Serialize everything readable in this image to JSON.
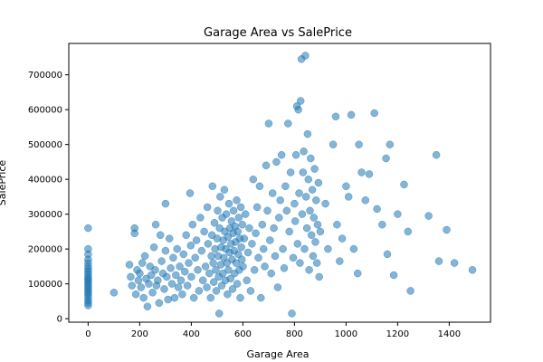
{
  "chart_data": {
    "type": "scatter",
    "title": "Garage Area vs SalePrice",
    "xlabel": "Garage Area",
    "ylabel": "SalePrice",
    "xlim": [
      -75,
      1560
    ],
    "ylim": [
      -10000,
      790000
    ],
    "xticks": [
      0,
      200,
      400,
      600,
      800,
      1000,
      1200,
      1400
    ],
    "yticks": [
      0,
      100000,
      200000,
      300000,
      400000,
      500000,
      600000,
      700000
    ],
    "grid": false,
    "marker_color": "#1f77b4",
    "marker_alpha": 0.55,
    "points": [
      [
        0,
        260000
      ],
      [
        0,
        200000
      ],
      [
        0,
        185000
      ],
      [
        0,
        170000
      ],
      [
        0,
        160000
      ],
      [
        0,
        150000
      ],
      [
        0,
        142000
      ],
      [
        0,
        135000
      ],
      [
        0,
        128000
      ],
      [
        0,
        120000
      ],
      [
        0,
        115000
      ],
      [
        0,
        110000
      ],
      [
        0,
        104000
      ],
      [
        0,
        98000
      ],
      [
        0,
        92000
      ],
      [
        0,
        86000
      ],
      [
        0,
        80000
      ],
      [
        0,
        74000
      ],
      [
        0,
        68000
      ],
      [
        0,
        60000
      ],
      [
        0,
        52000
      ],
      [
        0,
        45000
      ],
      [
        0,
        38000
      ],
      [
        100,
        75000
      ],
      [
        160,
        155000
      ],
      [
        165,
        120000
      ],
      [
        170,
        95000
      ],
      [
        180,
        260000
      ],
      [
        180,
        245000
      ],
      [
        185,
        70000
      ],
      [
        190,
        140000
      ],
      [
        195,
        110000
      ],
      [
        200,
        130000
      ],
      [
        205,
        90000
      ],
      [
        210,
        160000
      ],
      [
        215,
        60000
      ],
      [
        220,
        180000
      ],
      [
        225,
        115000
      ],
      [
        230,
        35000
      ],
      [
        235,
        100000
      ],
      [
        240,
        150000
      ],
      [
        245,
        125000
      ],
      [
        250,
        75000
      ],
      [
        255,
        205000
      ],
      [
        260,
        140000
      ],
      [
        262,
        270000
      ],
      [
        265,
        95000
      ],
      [
        270,
        110000
      ],
      [
        275,
        45000
      ],
      [
        280,
        240000
      ],
      [
        285,
        165000
      ],
      [
        290,
        130000
      ],
      [
        295,
        85000
      ],
      [
        300,
        330000
      ],
      [
        300,
        195000
      ],
      [
        305,
        120000
      ],
      [
        310,
        55000
      ],
      [
        315,
        230000
      ],
      [
        320,
        145000
      ],
      [
        325,
        100000
      ],
      [
        330,
        175000
      ],
      [
        335,
        60000
      ],
      [
        340,
        125000
      ],
      [
        345,
        200000
      ],
      [
        350,
        90000
      ],
      [
        355,
        150000
      ],
      [
        360,
        110000
      ],
      [
        365,
        70000
      ],
      [
        370,
        185000
      ],
      [
        375,
        135000
      ],
      [
        380,
        240000
      ],
      [
        385,
        95000
      ],
      [
        390,
        160000
      ],
      [
        395,
        360000
      ],
      [
        398,
        210000
      ],
      [
        400,
        120000
      ],
      [
        405,
        270000
      ],
      [
        410,
        60000
      ],
      [
        415,
        175000
      ],
      [
        420,
        225000
      ],
      [
        425,
        140000
      ],
      [
        430,
        80000
      ],
      [
        435,
        290000
      ],
      [
        440,
        195000
      ],
      [
        445,
        110000
      ],
      [
        450,
        250000
      ],
      [
        455,
        150000
      ],
      [
        460,
        90000
      ],
      [
        462,
        320000
      ],
      [
        465,
        215000
      ],
      [
        470,
        130000
      ],
      [
        475,
        60000
      ],
      [
        478,
        180000
      ],
      [
        480,
        240000
      ],
      [
        482,
        380000
      ],
      [
        485,
        160000
      ],
      [
        487,
        105000
      ],
      [
        490,
        275000
      ],
      [
        492,
        200000
      ],
      [
        495,
        140000
      ],
      [
        497,
        80000
      ],
      [
        500,
        230000
      ],
      [
        502,
        310000
      ],
      [
        504,
        180000
      ],
      [
        506,
        120000
      ],
      [
        508,
        15000
      ],
      [
        510,
        260000
      ],
      [
        512,
        350000
      ],
      [
        514,
        155000
      ],
      [
        516,
        205000
      ],
      [
        518,
        95000
      ],
      [
        520,
        290000
      ],
      [
        522,
        130000
      ],
      [
        524,
        225000
      ],
      [
        526,
        175000
      ],
      [
        528,
        370000
      ],
      [
        530,
        250000
      ],
      [
        532,
        110000
      ],
      [
        534,
        200000
      ],
      [
        536,
        300000
      ],
      [
        538,
        160000
      ],
      [
        540,
        70000
      ],
      [
        542,
        235000
      ],
      [
        544,
        140000
      ],
      [
        546,
        330000
      ],
      [
        548,
        190000
      ],
      [
        550,
        260000
      ],
      [
        552,
        115000
      ],
      [
        554,
        215000
      ],
      [
        556,
        280000
      ],
      [
        558,
        170000
      ],
      [
        560,
        85000
      ],
      [
        562,
        245000
      ],
      [
        564,
        310000
      ],
      [
        566,
        195000
      ],
      [
        568,
        130000
      ],
      [
        570,
        265000
      ],
      [
        572,
        220000
      ],
      [
        574,
        160000
      ],
      [
        576,
        340000
      ],
      [
        578,
        100000
      ],
      [
        580,
        250000
      ],
      [
        582,
        185000
      ],
      [
        584,
        290000
      ],
      [
        586,
        140000
      ],
      [
        588,
        230000
      ],
      [
        590,
        60000
      ],
      [
        592,
        320000
      ],
      [
        594,
        205000
      ],
      [
        596,
        170000
      ],
      [
        598,
        270000
      ],
      [
        600,
        150000
      ],
      [
        605,
        230000
      ],
      [
        610,
        300000
      ],
      [
        615,
        110000
      ],
      [
        620,
        190000
      ],
      [
        625,
        260000
      ],
      [
        630,
        80000
      ],
      [
        635,
        215000
      ],
      [
        640,
        400000
      ],
      [
        645,
        140000
      ],
      [
        650,
        245000
      ],
      [
        655,
        320000
      ],
      [
        660,
        175000
      ],
      [
        665,
        380000
      ],
      [
        670,
        60000
      ],
      [
        675,
        270000
      ],
      [
        680,
        200000
      ],
      [
        685,
        150000
      ],
      [
        690,
        440000
      ],
      [
        695,
        310000
      ],
      [
        700,
        560000
      ],
      [
        705,
        225000
      ],
      [
        710,
        130000
      ],
      [
        715,
        360000
      ],
      [
        720,
        260000
      ],
      [
        725,
        180000
      ],
      [
        730,
        450000
      ],
      [
        735,
        90000
      ],
      [
        740,
        290000
      ],
      [
        745,
        340000
      ],
      [
        750,
        470000
      ],
      [
        755,
        200000
      ],
      [
        760,
        145000
      ],
      [
        765,
        380000
      ],
      [
        770,
        310000
      ],
      [
        775,
        560000
      ],
      [
        780,
        250000
      ],
      [
        785,
        420000
      ],
      [
        790,
        15000
      ],
      [
        795,
        175000
      ],
      [
        800,
        330000
      ],
      [
        803,
        280000
      ],
      [
        806,
        470000
      ],
      [
        809,
        610000
      ],
      [
        812,
        215000
      ],
      [
        815,
        600000
      ],
      [
        818,
        360000
      ],
      [
        821,
        160000
      ],
      [
        824,
        625000
      ],
      [
        827,
        745000
      ],
      [
        830,
        300000
      ],
      [
        833,
        420000
      ],
      [
        836,
        480000
      ],
      [
        839,
        200000
      ],
      [
        842,
        755000
      ],
      [
        845,
        350000
      ],
      [
        848,
        260000
      ],
      [
        851,
        530000
      ],
      [
        854,
        400000
      ],
      [
        857,
        140000
      ],
      [
        860,
        310000
      ],
      [
        863,
        460000
      ],
      [
        866,
        240000
      ],
      [
        869,
        370000
      ],
      [
        872,
        180000
      ],
      [
        875,
        290000
      ],
      [
        878,
        430000
      ],
      [
        881,
        220000
      ],
      [
        884,
        340000
      ],
      [
        887,
        160000
      ],
      [
        890,
        270000
      ],
      [
        893,
        390000
      ],
      [
        896,
        120000
      ],
      [
        900,
        250000
      ],
      [
        920,
        330000
      ],
      [
        930,
        200000
      ],
      [
        950,
        500000
      ],
      [
        960,
        580000
      ],
      [
        965,
        270000
      ],
      [
        975,
        165000
      ],
      [
        985,
        230000
      ],
      [
        1000,
        380000
      ],
      [
        1010,
        350000
      ],
      [
        1020,
        585000
      ],
      [
        1030,
        200000
      ],
      [
        1045,
        130000
      ],
      [
        1050,
        500000
      ],
      [
        1060,
        420000
      ],
      [
        1075,
        340000
      ],
      [
        1090,
        415000
      ],
      [
        1110,
        590000
      ],
      [
        1120,
        315000
      ],
      [
        1140,
        270000
      ],
      [
        1155,
        460000
      ],
      [
        1160,
        185000
      ],
      [
        1170,
        500000
      ],
      [
        1185,
        125000
      ],
      [
        1200,
        300000
      ],
      [
        1225,
        385000
      ],
      [
        1240,
        250000
      ],
      [
        1250,
        80000
      ],
      [
        1320,
        295000
      ],
      [
        1350,
        470000
      ],
      [
        1360,
        165000
      ],
      [
        1390,
        255000
      ],
      [
        1420,
        160000
      ],
      [
        1490,
        140000
      ]
    ]
  }
}
